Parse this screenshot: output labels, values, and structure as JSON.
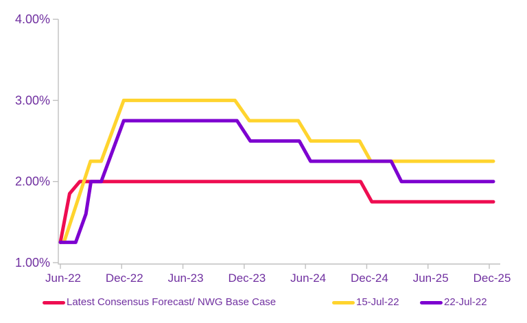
{
  "chart_data": {
    "type": "line",
    "title": "",
    "description": "Interest rate path forecasts in percent from Jun-22 to Dec-25",
    "grid": false,
    "legend_position": "bottom",
    "background_color": "#FFFFFF",
    "axis_line_color": "#C0C0C0",
    "axis_label_color": "#7030A0",
    "x_axis": {
      "tick_labels": [
        "Jun-22",
        "Dec-22",
        "Jun-23",
        "Dec-23",
        "Jun-24",
        "Dec-24",
        "Jun-25",
        "Dec-25"
      ],
      "tick_month_positions": [
        0,
        6,
        12,
        18,
        24,
        30,
        36,
        42
      ],
      "range_months": [
        0,
        42.4
      ]
    },
    "y_axis": {
      "tick_labels": [
        "1.00%",
        "2.00%",
        "3.00%",
        "4.00%"
      ],
      "tick_values": [
        1,
        2,
        3,
        4
      ],
      "min": 1.0,
      "max": 4.0,
      "unit": "percent"
    },
    "series": [
      {
        "name": "Latest Consensus Forecast/ NWG Base Case",
        "color": "#EE0D51",
        "points_month_pct": [
          [
            0,
            1.25
          ],
          [
            0.9,
            1.85
          ],
          [
            1.9,
            2.0
          ],
          [
            29.4,
            2.0
          ],
          [
            30.5,
            1.75
          ],
          [
            42.4,
            1.75
          ]
        ]
      },
      {
        "name": "15-Jul-22",
        "color": "#FFD42E",
        "points_month_pct": [
          [
            0.35,
            1.25
          ],
          [
            2.95,
            2.25
          ],
          [
            4.0,
            2.25
          ],
          [
            6.2,
            3.0
          ],
          [
            17.1,
            3.0
          ],
          [
            18.5,
            2.75
          ],
          [
            23.3,
            2.75
          ],
          [
            24.5,
            2.5
          ],
          [
            29.3,
            2.5
          ],
          [
            30.4,
            2.25
          ],
          [
            42.4,
            2.25
          ]
        ]
      },
      {
        "name": "22-Jul-22",
        "color": "#7D00D0",
        "points_month_pct": [
          [
            0,
            1.25
          ],
          [
            1.5,
            1.25
          ],
          [
            2.5,
            1.6
          ],
          [
            3.0,
            2.0
          ],
          [
            4.0,
            2.0
          ],
          [
            6.2,
            2.75
          ],
          [
            17.3,
            2.75
          ],
          [
            18.6,
            2.5
          ],
          [
            23.4,
            2.5
          ],
          [
            24.5,
            2.25
          ],
          [
            32.4,
            2.25
          ],
          [
            33.4,
            2.0
          ],
          [
            42.4,
            2.0
          ]
        ]
      }
    ]
  },
  "legend": {
    "items": [
      {
        "label": "Latest Consensus Forecast/ NWG Base Case",
        "color": "#EE0D51"
      },
      {
        "label": "15-Jul-22",
        "color": "#FFD42E"
      },
      {
        "label": "22-Jul-22",
        "color": "#7D00D0"
      }
    ]
  }
}
